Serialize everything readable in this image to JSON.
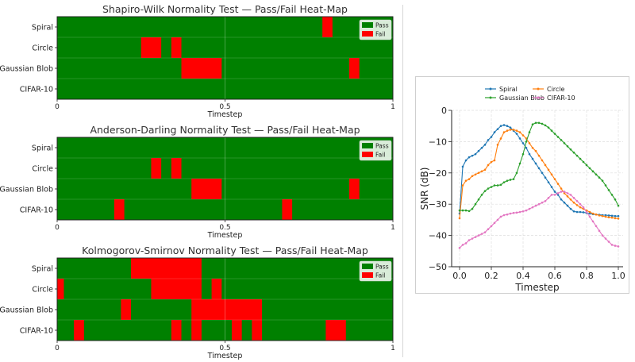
{
  "colors": {
    "pass": "#008000",
    "fail": "#ff0000",
    "spiral": "#1f77b4",
    "circle": "#ff7f0e",
    "gaussian_blob": "#2ca02c",
    "cifar10": "#e377c2"
  },
  "chart_data": [
    {
      "type": "heatmap",
      "title": "Shapiro-Wilk Normality Test — Pass/Fail Heat-Map",
      "xlabel": "Timestep",
      "ylabel": "",
      "xlim": [
        0,
        1
      ],
      "xticks": [
        "0",
        "0.5",
        "1"
      ],
      "rows": [
        "Spiral",
        "Circle",
        "Gaussian Blob",
        "CIFAR-10"
      ],
      "legend": {
        "placement": "top-right",
        "entries": [
          "Pass",
          "Fail"
        ]
      },
      "fail_intervals": [
        [
          [
            0.79,
            0.82
          ]
        ],
        [
          [
            0.25,
            0.31
          ],
          [
            0.34,
            0.37
          ]
        ],
        [
          [
            0.37,
            0.49
          ],
          [
            0.87,
            0.9
          ]
        ],
        []
      ]
    },
    {
      "type": "heatmap",
      "title": "Anderson-Darling Normality Test — Pass/Fail Heat-Map",
      "xlabel": "Timestep",
      "ylabel": "",
      "xlim": [
        0,
        1
      ],
      "xticks": [
        "0",
        "0.5",
        "1"
      ],
      "rows": [
        "Spiral",
        "Circle",
        "Gaussian Blob",
        "CIFAR-10"
      ],
      "legend": {
        "placement": "top-right",
        "entries": [
          "Pass",
          "Fail"
        ]
      },
      "fail_intervals": [
        [],
        [
          [
            0.28,
            0.31
          ],
          [
            0.34,
            0.37
          ]
        ],
        [
          [
            0.4,
            0.49
          ],
          [
            0.87,
            0.9
          ]
        ],
        [
          [
            0.17,
            0.2
          ],
          [
            0.67,
            0.7
          ]
        ]
      ]
    },
    {
      "type": "heatmap",
      "title": "Kolmogorov-Smirnov Normality Test — Pass/Fail Heat-Map",
      "xlabel": "Timestep",
      "ylabel": "",
      "xlim": [
        0,
        1
      ],
      "xticks": [
        "0",
        "0.5",
        "1"
      ],
      "rows": [
        "Spiral",
        "Circle",
        "Gaussian Blob",
        "CIFAR-10"
      ],
      "legend": {
        "placement": "top-right",
        "entries": [
          "Pass",
          "Fail"
        ]
      },
      "fail_intervals": [
        [
          [
            0.22,
            0.43
          ]
        ],
        [
          [
            -0.01,
            0.02
          ],
          [
            0.28,
            0.43
          ],
          [
            0.46,
            0.49
          ]
        ],
        [
          [
            0.19,
            0.22
          ],
          [
            0.4,
            0.61
          ]
        ],
        [
          [
            0.05,
            0.08
          ],
          [
            0.34,
            0.37
          ],
          [
            0.4,
            0.43
          ],
          [
            0.52,
            0.55
          ],
          [
            0.58,
            0.61
          ],
          [
            0.8,
            0.86
          ]
        ]
      ]
    },
    {
      "type": "line",
      "title": "",
      "xlabel": "Timestep",
      "ylabel": "SNR (dB)",
      "xlim": [
        -0.05,
        1.03
      ],
      "ylim": [
        -50,
        0
      ],
      "xticks": [
        "0.0",
        "0.2",
        "0.4",
        "0.6",
        "0.8",
        "1.0"
      ],
      "yticks": [
        "0",
        "−10",
        "−20",
        "−30",
        "−40",
        "−50"
      ],
      "grid": true,
      "legend": {
        "placement": "top",
        "columns": 2
      },
      "x": [
        0,
        0.02,
        0.04,
        0.06,
        0.08,
        0.1,
        0.12,
        0.14,
        0.16,
        0.18,
        0.2,
        0.22,
        0.24,
        0.26,
        0.28,
        0.3,
        0.32,
        0.34,
        0.36,
        0.38,
        0.4,
        0.42,
        0.44,
        0.46,
        0.48,
        0.5,
        0.52,
        0.54,
        0.56,
        0.58,
        0.6,
        0.62,
        0.64,
        0.66,
        0.68,
        0.7,
        0.72,
        0.74,
        0.76,
        0.78,
        0.8,
        0.82,
        0.84,
        0.86,
        0.88,
        0.9,
        0.92,
        0.94,
        0.96,
        0.98,
        1.0
      ],
      "series": [
        {
          "name": "Spiral",
          "color": "#1f77b4",
          "values": [
            -33,
            -18,
            -16,
            -15,
            -14.5,
            -14,
            -13,
            -12,
            -11,
            -9.5,
            -8.5,
            -7,
            -6,
            -5,
            -4.7,
            -5,
            -5.5,
            -6.5,
            -7.5,
            -9,
            -10.5,
            -12,
            -14,
            -15.5,
            -17,
            -18.5,
            -20,
            -21.5,
            -23,
            -24.5,
            -26,
            -27,
            -28.5,
            -29.5,
            -30.5,
            -31.5,
            -32.3,
            -32.5,
            -32.5,
            -32.6,
            -32.8,
            -33,
            -33.2,
            -33.3,
            -33.4,
            -33.5,
            -33.5,
            -33.6,
            -33.7,
            -33.8,
            -33.8
          ]
        },
        {
          "name": "Circle",
          "color": "#ff7f0e",
          "values": [
            -34.5,
            -24,
            -22.5,
            -22,
            -21,
            -20.5,
            -20,
            -19.5,
            -19,
            -17.5,
            -16.5,
            -16,
            -11,
            -9,
            -7,
            -6.5,
            -6.2,
            -6.2,
            -6.5,
            -7,
            -8,
            -9,
            -10.5,
            -12,
            -13,
            -14.5,
            -16,
            -17.5,
            -19,
            -20.5,
            -22,
            -23.5,
            -25,
            -26.5,
            -27.5,
            -28.5,
            -29.5,
            -30.3,
            -31,
            -31.5,
            -32,
            -32.5,
            -33,
            -33.3,
            -33.6,
            -33.8,
            -34,
            -34.2,
            -34.3,
            -34.5,
            -34.6
          ]
        },
        {
          "name": "Gaussian Blob",
          "color": "#2ca02c",
          "values": [
            -32,
            -32,
            -32,
            -32.2,
            -31.5,
            -30,
            -28.5,
            -27,
            -25.8,
            -25,
            -24.5,
            -24,
            -24,
            -23.8,
            -23,
            -22.5,
            -22.2,
            -22,
            -20,
            -17,
            -14,
            -10,
            -7,
            -4.5,
            -4,
            -4,
            -4.3,
            -4.8,
            -5.5,
            -6.5,
            -7.5,
            -8.5,
            -9.5,
            -10.5,
            -11.5,
            -12.5,
            -13.5,
            -14.5,
            -15.5,
            -16.5,
            -17.5,
            -18.5,
            -19.5,
            -20.5,
            -21.5,
            -22.5,
            -24,
            -25.5,
            -27,
            -28.5,
            -30.5
          ]
        },
        {
          "name": "CIFAR-10",
          "color": "#e377c2",
          "values": [
            -44,
            -43,
            -42.5,
            -41.5,
            -41,
            -40.5,
            -40,
            -39.5,
            -39,
            -38,
            -37,
            -36,
            -35,
            -34,
            -33.5,
            -33.3,
            -33,
            -32.8,
            -32.7,
            -32.5,
            -32.3,
            -32,
            -31.5,
            -31,
            -30.5,
            -30,
            -29.5,
            -29,
            -28,
            -27,
            -27,
            -26.5,
            -26,
            -26,
            -26.5,
            -27,
            -28,
            -29,
            -30,
            -31,
            -32.5,
            -34,
            -35.5,
            -37,
            -38.5,
            -40,
            -41,
            -42,
            -43,
            -43.3,
            -43.5
          ]
        }
      ]
    }
  ]
}
